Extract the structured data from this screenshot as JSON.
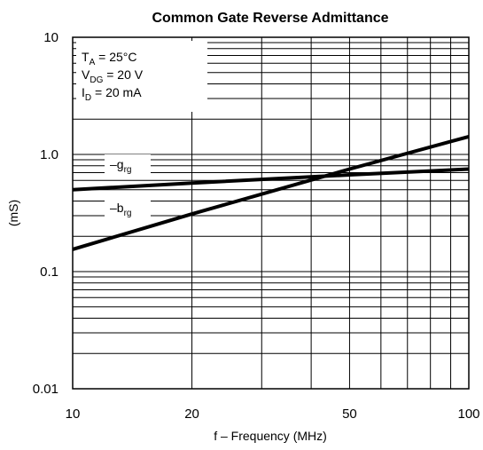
{
  "chart_data": {
    "type": "line",
    "title": "Common Gate Reverse Admittance",
    "xlabel": "f – Frequency (MHz)",
    "ylabel": "(mS)",
    "x_scale": "log",
    "y_scale": "log",
    "xlim": [
      10,
      100
    ],
    "ylim": [
      0.01,
      10
    ],
    "x_ticks": [
      10,
      20,
      50,
      100
    ],
    "x_tick_labels": [
      "10",
      "20",
      "50",
      "100"
    ],
    "y_ticks": [
      0.01,
      0.1,
      1.0,
      10
    ],
    "y_tick_labels": [
      "0.01",
      "0.1",
      "1.0",
      "10"
    ],
    "grid": true,
    "conditions": [
      {
        "main": "T",
        "sub": "A",
        "rest": " = 25°C"
      },
      {
        "main": "V",
        "sub": "DG",
        "rest": " = 20 V"
      },
      {
        "main": "I",
        "sub": "D",
        "rest": " = 20 mA"
      }
    ],
    "series": [
      {
        "name": "–g",
        "name_sub": "rg",
        "x": [
          10,
          20,
          50,
          100
        ],
        "y": [
          0.5,
          0.57,
          0.67,
          0.75
        ]
      },
      {
        "name": "–b",
        "name_sub": "rg",
        "x": [
          10,
          20,
          50,
          100
        ],
        "y": [
          0.155,
          0.31,
          0.75,
          1.42
        ]
      }
    ]
  }
}
